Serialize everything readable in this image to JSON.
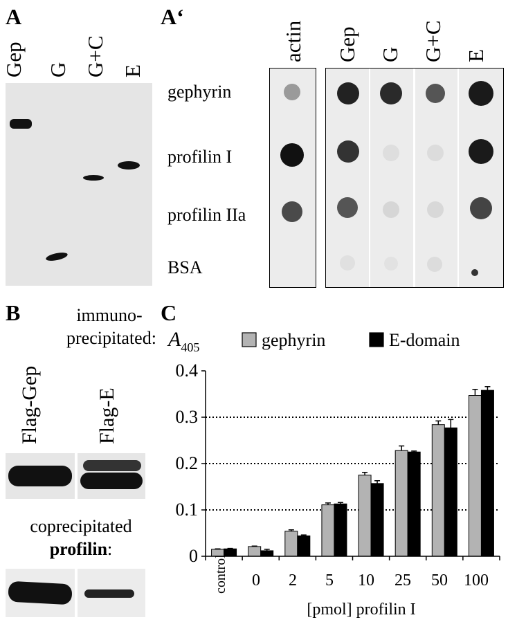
{
  "panels": {
    "A": {
      "letter": "A",
      "lanes": [
        "Gep",
        "G",
        "G+C",
        "E"
      ]
    },
    "A_prime": {
      "letter": "A‘",
      "actin_label": "actin",
      "lanes": [
        "Gep",
        "G",
        "G+C",
        "E"
      ],
      "rows": [
        "gephyrin",
        "profilin I",
        "profilin IIa",
        "BSA"
      ]
    },
    "B": {
      "letter": "B",
      "immuno_line1": "immuno-",
      "immuno_line2": "precipitated:",
      "lanes": [
        "Flag-Gep",
        "Flag-E"
      ],
      "copre_line1": "coprecipitated",
      "copre_word": "profilin",
      "copre_colon": ":"
    },
    "C": {
      "letter": "C"
    }
  },
  "chart_data": {
    "type": "bar",
    "ylabel_main": "A",
    "ylabel_sub": "405",
    "xlabel": "[pmol] profilin I",
    "categories": [
      "control",
      "0",
      "2",
      "5",
      "10",
      "25",
      "50",
      "100"
    ],
    "series": [
      {
        "name": "gephyrin",
        "color": "#b3b3b3",
        "values": [
          0.015,
          0.021,
          0.054,
          0.111,
          0.175,
          0.228,
          0.284,
          0.347
        ],
        "errors": [
          0.001,
          0.001,
          0.003,
          0.004,
          0.006,
          0.01,
          0.008,
          0.013
        ]
      },
      {
        "name": "E-domain",
        "color": "#000000",
        "values": [
          0.016,
          0.012,
          0.044,
          0.113,
          0.157,
          0.225,
          0.277,
          0.358
        ],
        "errors": [
          0.001,
          0.003,
          0.002,
          0.003,
          0.006,
          0.002,
          0.018,
          0.008
        ]
      }
    ],
    "ylim": [
      0,
      0.4
    ],
    "yticks": [
      "0",
      "0.1",
      "0.2",
      "0.3",
      "0.4"
    ],
    "dotted_gridlines": [
      0.1,
      0.2,
      0.3
    ],
    "legend": "top"
  }
}
